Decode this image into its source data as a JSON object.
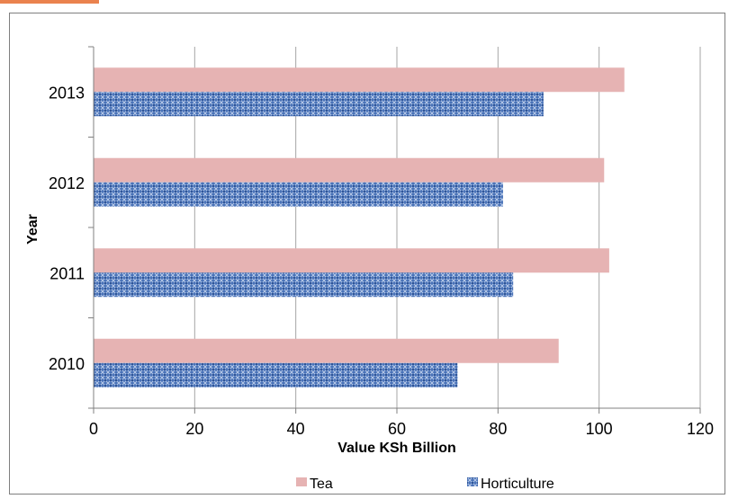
{
  "colors": {
    "tea": "#e6b3b3",
    "horticulture": "#4a73b8",
    "horticulture_light": "#9fb6e0",
    "grid": "#a6a6a6",
    "axis": "#808080"
  },
  "chart_data": {
    "type": "bar",
    "orientation": "horizontal",
    "categories": [
      "2010",
      "2011",
      "2012",
      "2013"
    ],
    "series": [
      {
        "name": "Tea",
        "values": [
          92,
          102,
          101,
          105
        ]
      },
      {
        "name": "Horticulture",
        "values": [
          72,
          83,
          81,
          89
        ]
      }
    ],
    "xlabel": "Value KSh Billion",
    "ylabel": "Year",
    "xlim": [
      0,
      120
    ],
    "xticks": [
      "0",
      "20",
      "40",
      "60",
      "80",
      "100",
      "120"
    ],
    "grid": "vertical",
    "legend": "bottom"
  }
}
